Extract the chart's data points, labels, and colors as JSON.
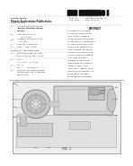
{
  "background_color": "#ffffff",
  "barcode_color": "#111111",
  "text_dark": "#222222",
  "text_mid": "#444444",
  "text_light": "#666666",
  "line_color": "#999999",
  "diagram_bg": "#f2f2f2",
  "diagram_border": "#aaaaaa",
  "fig_label": "FIG. 1"
}
